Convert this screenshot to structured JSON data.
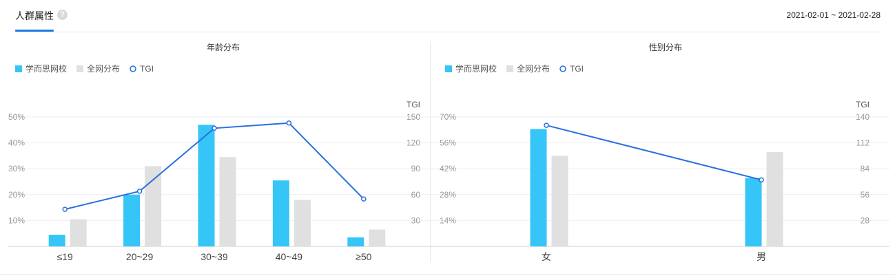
{
  "header": {
    "tab_label": "人群属性",
    "help_icon": "?",
    "date_range": "2021-02-01 ~ 2021-02-28"
  },
  "colors": {
    "brand_series": "#36c5f7",
    "all_series": "#e0e0e0",
    "tgi_line": "#2a6fde",
    "tab_accent": "#1e7ae6"
  },
  "chart_data": [
    {
      "type": "bar",
      "title": "年龄分布",
      "categories": [
        "≤19",
        "20~29",
        "30~39",
        "40~49",
        "≥50"
      ],
      "series": [
        {
          "name": "学而思网校",
          "kind": "bar",
          "axis": "left",
          "values": [
            4.5,
            20,
            47,
            25.5,
            3.5
          ]
        },
        {
          "name": "全网分布",
          "kind": "bar",
          "axis": "left",
          "values": [
            10.5,
            31,
            34.5,
            18,
            6.5
          ]
        },
        {
          "name": "TGI",
          "kind": "line",
          "axis": "right",
          "values": [
            43,
            64,
            137,
            143,
            55
          ]
        }
      ],
      "y_left": {
        "ticks": [
          "10%",
          "20%",
          "30%",
          "40%",
          "50%"
        ],
        "range": [
          0,
          50
        ]
      },
      "y_right": {
        "label": "TGI",
        "ticks": [
          "30",
          "60",
          "90",
          "120",
          "150"
        ],
        "range": [
          0,
          150
        ]
      },
      "legend_position": "top-left",
      "grid": true
    },
    {
      "type": "bar",
      "title": "性别分布",
      "categories": [
        "女",
        "男"
      ],
      "series": [
        {
          "name": "学而思网校",
          "kind": "bar",
          "axis": "left",
          "values": [
            63.5,
            37
          ]
        },
        {
          "name": "全网分布",
          "kind": "bar",
          "axis": "left",
          "values": [
            49,
            51
          ]
        },
        {
          "name": "TGI",
          "kind": "line",
          "axis": "right",
          "values": [
            131,
            72
          ]
        }
      ],
      "y_left": {
        "ticks": [
          "14%",
          "28%",
          "42%",
          "56%",
          "70%"
        ],
        "range": [
          0,
          70
        ]
      },
      "y_right": {
        "label": "TGI",
        "ticks": [
          "28",
          "56",
          "84",
          "112",
          "140"
        ],
        "range": [
          0,
          140
        ]
      },
      "legend_position": "top-left",
      "grid": true
    }
  ]
}
